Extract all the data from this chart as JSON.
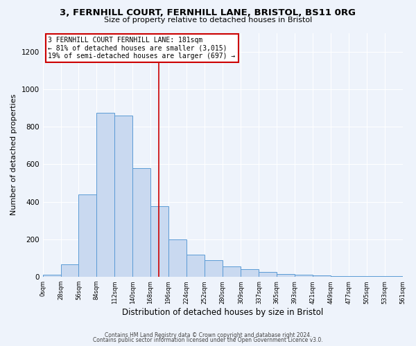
{
  "title": "3, FERNHILL COURT, FERNHILL LANE, BRISTOL, BS11 0RG",
  "subtitle": "Size of property relative to detached houses in Bristol",
  "xlabel": "Distribution of detached houses by size in Bristol",
  "ylabel": "Number of detached properties",
  "footer_line1": "Contains HM Land Registry data © Crown copyright and database right 2024.",
  "footer_line2": "Contains public sector information licensed under the Open Government Licence v3.0.",
  "bar_edges": [
    0,
    28,
    56,
    84,
    112,
    140,
    168,
    196,
    224,
    252,
    280,
    309,
    337,
    365,
    393,
    421,
    449,
    477,
    505,
    533,
    561
  ],
  "bar_heights": [
    10,
    65,
    440,
    875,
    860,
    578,
    375,
    200,
    120,
    90,
    55,
    40,
    25,
    15,
    10,
    8,
    5,
    3,
    3,
    3
  ],
  "bar_color": "#c9d9f0",
  "bar_edge_color": "#5b9bd5",
  "vline_x": 181,
  "vline_color": "#cc0000",
  "annotation_text": "3 FERNHILL COURT FERNHILL LANE: 181sqm\n← 81% of detached houses are smaller (3,015)\n19% of semi-detached houses are larger (697) →",
  "annotation_box_color": "#ffffff",
  "annotation_box_edge": "#cc0000",
  "ylim": [
    0,
    1300
  ],
  "yticks": [
    0,
    200,
    400,
    600,
    800,
    1000,
    1200
  ],
  "tick_labels": [
    "0sqm",
    "28sqm",
    "56sqm",
    "84sqm",
    "112sqm",
    "140sqm",
    "168sqm",
    "196sqm",
    "224sqm",
    "252sqm",
    "280sqm",
    "309sqm",
    "337sqm",
    "365sqm",
    "393sqm",
    "421sqm",
    "449sqm",
    "477sqm",
    "505sqm",
    "533sqm",
    "561sqm"
  ],
  "bg_color": "#eef3fb",
  "grid_color": "#ffffff",
  "title_fontsize": 9.5,
  "subtitle_fontsize": 8,
  "xlabel_fontsize": 8.5,
  "ylabel_fontsize": 8,
  "xtick_fontsize": 6,
  "ytick_fontsize": 7.5,
  "footer_fontsize": 5.5
}
